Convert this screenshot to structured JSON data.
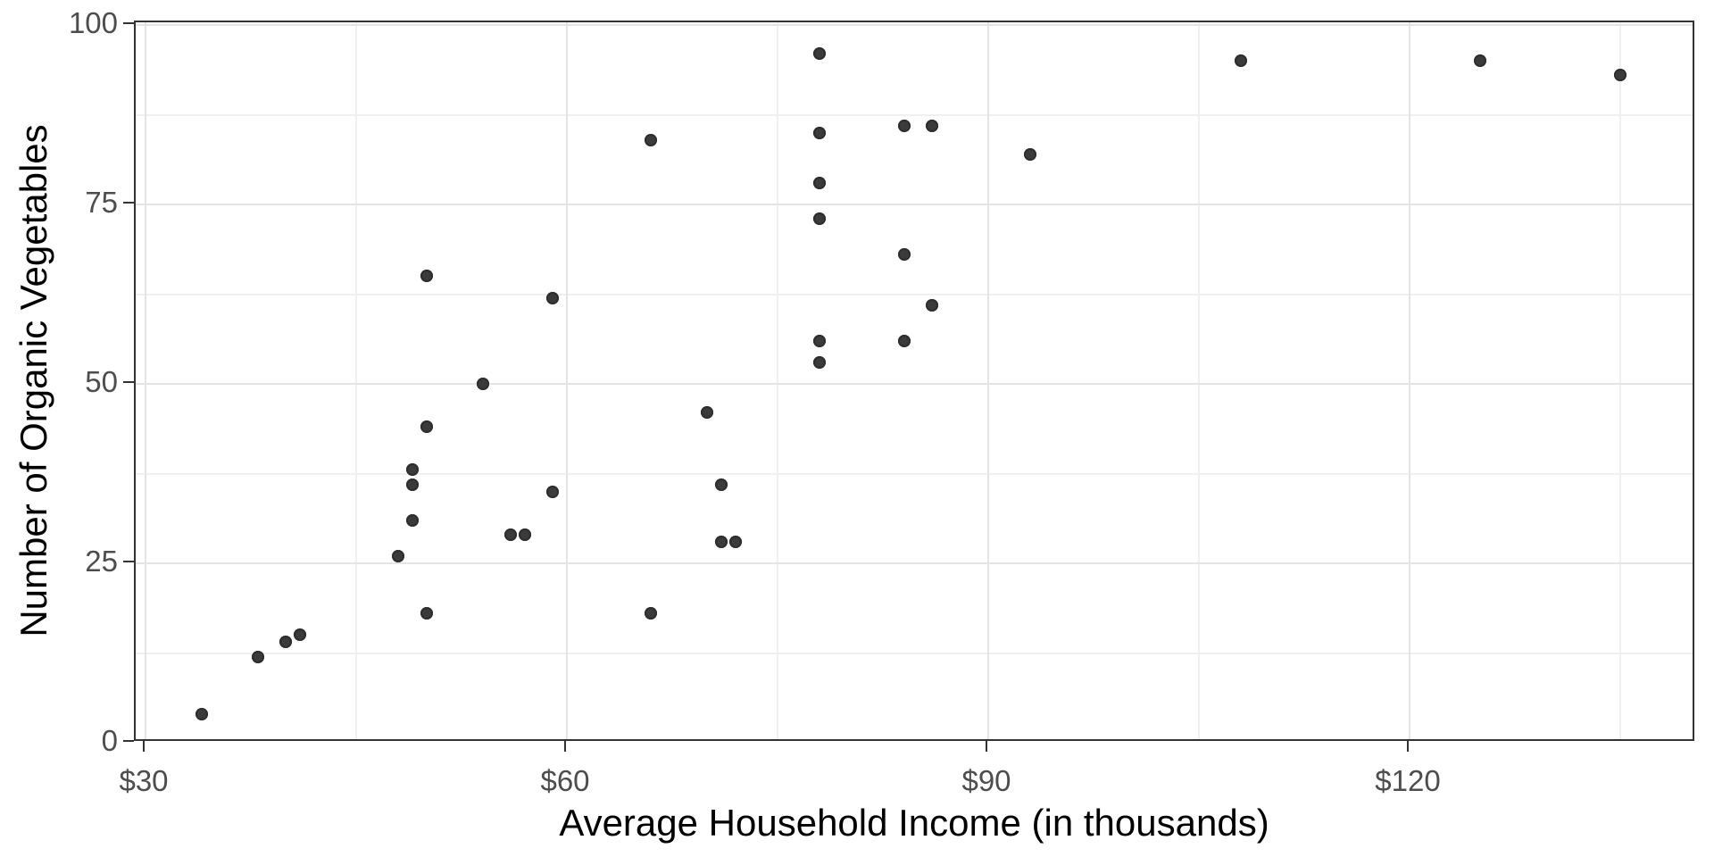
{
  "chart_data": {
    "type": "scatter",
    "xlabel": "Average Household Income (in thousands)",
    "ylabel": "Number of Organic Vegetables",
    "legend": "none",
    "grid": "major+minor",
    "x_axis": {
      "range": [
        29.3,
        140.4
      ],
      "major_ticks": [
        {
          "value": 30,
          "label": "$30"
        },
        {
          "value": 60,
          "label": "$60"
        },
        {
          "value": 90,
          "label": "$90"
        },
        {
          "value": 120,
          "label": "$120"
        }
      ],
      "minor_ticks": [
        45,
        75,
        105,
        135
      ]
    },
    "y_axis": {
      "range": [
        0,
        100.3
      ],
      "major_ticks": [
        {
          "value": 0,
          "label": "0"
        },
        {
          "value": 25,
          "label": "25"
        },
        {
          "value": 50,
          "label": "50"
        },
        {
          "value": 75,
          "label": "75"
        },
        {
          "value": 100,
          "label": "100"
        }
      ],
      "minor_ticks": [
        12.5,
        37.5,
        62.5,
        87.5
      ]
    },
    "points": [
      [
        34,
        4
      ],
      [
        38,
        12
      ],
      [
        40,
        14
      ],
      [
        41,
        15
      ],
      [
        48,
        26
      ],
      [
        49,
        31
      ],
      [
        49,
        36
      ],
      [
        49,
        38
      ],
      [
        50,
        18
      ],
      [
        50,
        44
      ],
      [
        50,
        65
      ],
      [
        54,
        50
      ],
      [
        56,
        29
      ],
      [
        57,
        29
      ],
      [
        59,
        35
      ],
      [
        59,
        62
      ],
      [
        66,
        18
      ],
      [
        66,
        84
      ],
      [
        70,
        46
      ],
      [
        71,
        28
      ],
      [
        71,
        36
      ],
      [
        72,
        28
      ],
      [
        78,
        53
      ],
      [
        78,
        56
      ],
      [
        78,
        73
      ],
      [
        78,
        78
      ],
      [
        78,
        85
      ],
      [
        78,
        96
      ],
      [
        84,
        56
      ],
      [
        84,
        68
      ],
      [
        84,
        86
      ],
      [
        86,
        61
      ],
      [
        86,
        86
      ],
      [
        93,
        82
      ],
      [
        108,
        95
      ],
      [
        125,
        95
      ],
      [
        135,
        93
      ]
    ]
  },
  "style": {
    "point_color": "#3b3b3b",
    "grid_major_color": "#e4e4e4",
    "grid_minor_color": "#f0f0f0",
    "panel_border_color": "#333333",
    "tick_color": "#333333",
    "tick_label_color": "#4d4d4d",
    "axis_title_color": "#000000",
    "background": "#ffffff"
  }
}
